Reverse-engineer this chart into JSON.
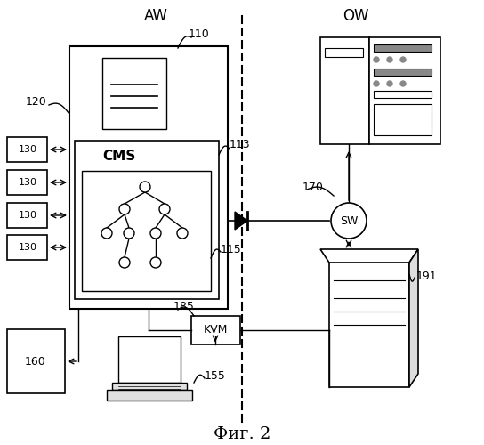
{
  "title": "Фиг. 2",
  "label_AW": "AW",
  "label_OW": "OW",
  "bg_color": "#ffffff",
  "line_color": "#000000"
}
